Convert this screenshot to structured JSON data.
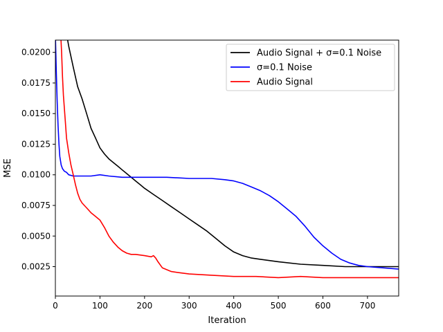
{
  "chart_data": {
    "type": "line",
    "xlabel": "Iteration",
    "ylabel": "MSE",
    "xlim": [
      0,
      770
    ],
    "ylim": [
      0.0001,
      0.021
    ],
    "x_ticks": [
      0,
      100,
      200,
      300,
      400,
      500,
      600,
      700
    ],
    "x_tick_labels": [
      "0",
      "100",
      "200",
      "300",
      "400",
      "500",
      "600",
      "700"
    ],
    "y_ticks": [
      0.0025,
      0.005,
      0.0075,
      0.01,
      0.0125,
      0.015,
      0.0175,
      0.02
    ],
    "y_tick_labels": [
      "0.0025",
      "0.0050",
      "0.0075",
      "0.0100",
      "0.0125",
      "0.0150",
      "0.0175",
      "0.0200"
    ],
    "grid": false,
    "legend_position": "top-right",
    "series": [
      {
        "name": "Audio Signal + σ=0.1 Noise",
        "color": "#000000",
        "x": [
          25,
          30,
          40,
          50,
          60,
          70,
          80,
          90,
          100,
          110,
          120,
          130,
          140,
          150,
          160,
          170,
          180,
          190,
          200,
          220,
          240,
          260,
          280,
          300,
          320,
          340,
          360,
          380,
          400,
          420,
          440,
          460,
          480,
          500,
          550,
          600,
          650,
          700,
          770
        ],
        "y": [
          0.0215,
          0.0205,
          0.0188,
          0.0172,
          0.0162,
          0.015,
          0.0138,
          0.013,
          0.0122,
          0.0117,
          0.0113,
          0.011,
          0.0107,
          0.0104,
          0.0101,
          0.0098,
          0.0095,
          0.0092,
          0.0089,
          0.0084,
          0.0079,
          0.0074,
          0.0069,
          0.0064,
          0.0059,
          0.0054,
          0.0048,
          0.0042,
          0.0037,
          0.0034,
          0.0032,
          0.0031,
          0.003,
          0.0029,
          0.0027,
          0.0026,
          0.0025,
          0.0025,
          0.0025
        ]
      },
      {
        "name": "σ=0.1 Noise",
        "color": "#0000ff",
        "x": [
          0,
          2,
          4,
          6,
          8,
          10,
          13,
          16,
          20,
          25,
          30,
          40,
          60,
          80,
          100,
          120,
          150,
          200,
          250,
          300,
          350,
          380,
          400,
          420,
          440,
          460,
          480,
          500,
          520,
          540,
          560,
          580,
          600,
          620,
          640,
          660,
          680,
          700,
          770
        ],
        "y": [
          0.0215,
          0.0185,
          0.016,
          0.014,
          0.0125,
          0.0115,
          0.0108,
          0.0105,
          0.0103,
          0.0102,
          0.01,
          0.0099,
          0.0099,
          0.0099,
          0.01,
          0.0099,
          0.0098,
          0.0098,
          0.0098,
          0.0097,
          0.0097,
          0.0096,
          0.0095,
          0.0093,
          0.009,
          0.0087,
          0.0083,
          0.0078,
          0.0072,
          0.0066,
          0.0058,
          0.0049,
          0.0042,
          0.0036,
          0.0031,
          0.0028,
          0.0026,
          0.0025,
          0.0023
        ]
      },
      {
        "name": "Audio Signal",
        "color": "#ff0000",
        "x": [
          12,
          14,
          16,
          18,
          20,
          22,
          25,
          30,
          35,
          40,
          45,
          50,
          55,
          60,
          70,
          80,
          90,
          100,
          110,
          120,
          130,
          140,
          150,
          160,
          170,
          180,
          200,
          215,
          220,
          225,
          230,
          240,
          260,
          280,
          300,
          350,
          400,
          450,
          500,
          550,
          600,
          650,
          700,
          770
        ],
        "y": [
          0.0215,
          0.02,
          0.018,
          0.0165,
          0.0155,
          0.0145,
          0.013,
          0.0118,
          0.0108,
          0.01,
          0.0092,
          0.0085,
          0.008,
          0.0077,
          0.0073,
          0.0069,
          0.0066,
          0.0063,
          0.0057,
          0.005,
          0.0045,
          0.0041,
          0.0038,
          0.0036,
          0.0035,
          0.0035,
          0.0034,
          0.0033,
          0.0034,
          0.0032,
          0.0029,
          0.0024,
          0.0021,
          0.002,
          0.0019,
          0.0018,
          0.0017,
          0.0017,
          0.0016,
          0.0017,
          0.0016,
          0.0016,
          0.0016,
          0.0016
        ]
      }
    ]
  }
}
